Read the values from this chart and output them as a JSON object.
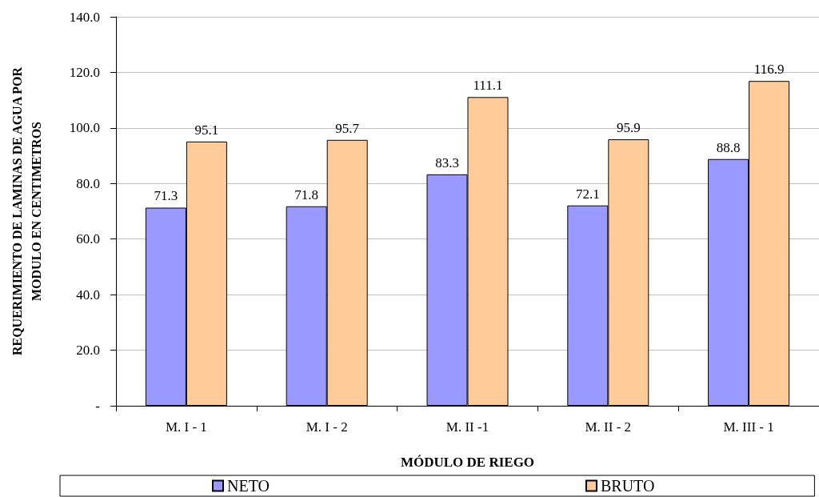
{
  "chart_data": {
    "type": "bar",
    "categories": [
      "M. I - 1",
      "M. I - 2",
      "M. II -1",
      "M. II - 2",
      "M. III - 1"
    ],
    "series": [
      {
        "name": "NETO",
        "color": "#9999ff",
        "values": [
          71.3,
          71.8,
          83.3,
          72.1,
          88.8
        ]
      },
      {
        "name": "BRUTO",
        "color": "#ffcc99",
        "values": [
          95.1,
          95.7,
          111.1,
          95.9,
          116.9
        ]
      }
    ],
    "xlabel": "MÓDULO DE RIEGO",
    "ylabel": "REQUERIMIENTO DE LAMINAS DE AGUA POR MODULO EN CENTIMETROS",
    "ylim": [
      0,
      140
    ],
    "yticks": [
      {
        "value": 0,
        "label": "-"
      },
      {
        "value": 20,
        "label": "20.0"
      },
      {
        "value": 40,
        "label": "40.0"
      },
      {
        "value": 60,
        "label": "60.0"
      },
      {
        "value": 80,
        "label": "80.0"
      },
      {
        "value": 100,
        "label": "100.0"
      },
      {
        "value": 120,
        "label": "120.0"
      },
      {
        "value": 140,
        "label": "140.0"
      }
    ],
    "grid": "y",
    "legend": "bottom",
    "data_labels": true
  }
}
